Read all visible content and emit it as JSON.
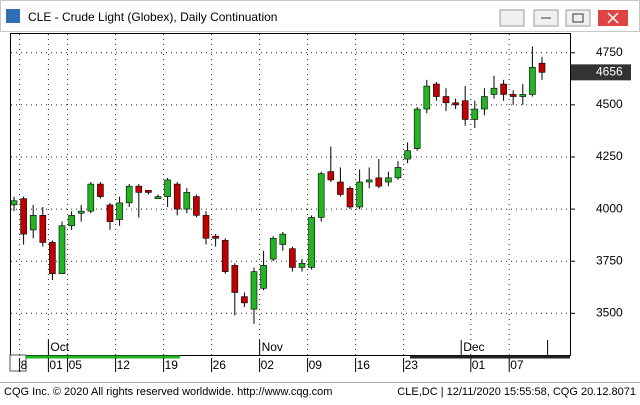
{
  "window_title": "CLE - Crude Light (Globex), Daily Continuation",
  "footer": {
    "left": "CQG Inc. © 2020 All rights reserved worldwide. http://www.cqg.com",
    "right": "CLE,DC | 12/11/2020 15:55:58, CQG 20.12.8071"
  },
  "chart_data": {
    "type": "candlestick",
    "categories": [
      null,
      "8",
      null,
      null,
      "01",
      null,
      "05",
      null,
      null,
      null,
      null,
      "12",
      null,
      null,
      null,
      null,
      "19",
      null,
      null,
      null,
      null,
      "26",
      null,
      null,
      null,
      null,
      "02",
      null,
      null,
      null,
      null,
      "09",
      null,
      null,
      null,
      null,
      "16",
      null,
      null,
      null,
      null,
      "23",
      null,
      null,
      null,
      null,
      null,
      null,
      "01",
      null,
      null,
      null,
      "07",
      null,
      null,
      null,
      null
    ],
    "months": [
      null,
      null,
      null,
      null,
      "Oct",
      null,
      null,
      null,
      null,
      null,
      null,
      null,
      null,
      null,
      null,
      null,
      null,
      null,
      null,
      null,
      null,
      null,
      null,
      null,
      null,
      null,
      "Nov",
      null,
      null,
      null,
      null,
      null,
      null,
      null,
      null,
      null,
      null,
      null,
      null,
      null,
      null,
      null,
      null,
      null,
      null,
      null,
      null,
      "Dec",
      null,
      null,
      null,
      null,
      null,
      null,
      null,
      null
    ],
    "open": [
      4020,
      4050,
      3900,
      3970,
      3840,
      3690,
      3920,
      3980,
      3990,
      4120,
      4020,
      3950,
      4030,
      4110,
      4090,
      4050,
      4060,
      4120,
      4000,
      4060,
      3970,
      3870,
      3850,
      3730,
      3580,
      3520,
      3620,
      3760,
      3830,
      3810,
      3720,
      3720,
      3960,
      4180,
      4130,
      4100,
      4010,
      4130,
      4150,
      4130,
      4150,
      4240,
      4290,
      4480,
      4600,
      4540,
      4510,
      4520,
      4430,
      4480,
      4550,
      4600,
      4550,
      4540,
      4550,
      4700
    ],
    "high": [
      4060,
      4060,
      4020,
      4010,
      3850,
      3940,
      3990,
      4020,
      4130,
      4130,
      4030,
      4060,
      4120,
      4120,
      4090,
      4070,
      4150,
      4130,
      4100,
      4070,
      3990,
      3880,
      3860,
      3740,
      3600,
      3720,
      3800,
      3870,
      3890,
      3820,
      3760,
      3970,
      4180,
      4300,
      4200,
      4110,
      4190,
      4200,
      4240,
      4180,
      4230,
      4320,
      4490,
      4620,
      4610,
      4580,
      4530,
      4590,
      4520,
      4580,
      4640,
      4620,
      4570,
      4600,
      4780,
      4730
    ],
    "low": [
      3990,
      3830,
      3860,
      3820,
      3660,
      3690,
      3900,
      3940,
      3980,
      4050,
      3900,
      3920,
      4010,
      3960,
      4070,
      4050,
      4010,
      3970,
      3980,
      3960,
      3830,
      3820,
      3690,
      3490,
      3530,
      3450,
      3610,
      3750,
      3800,
      3700,
      3700,
      3710,
      3940,
      4130,
      4060,
      4000,
      4000,
      4100,
      4100,
      4110,
      4140,
      4220,
      4280,
      4460,
      4520,
      4470,
      4480,
      4400,
      4390,
      4450,
      4530,
      4520,
      4500,
      4500,
      4540,
      4620
    ],
    "close": [
      4040,
      3880,
      3970,
      3840,
      3690,
      3920,
      3970,
      3990,
      4120,
      4060,
      3940,
      4030,
      4110,
      4080,
      4080,
      4060,
      4140,
      4000,
      4080,
      3970,
      3860,
      3860,
      3700,
      3600,
      3550,
      3700,
      3730,
      3860,
      3880,
      3720,
      3740,
      3960,
      4170,
      4140,
      4070,
      4010,
      4130,
      4140,
      4110,
      4150,
      4200,
      4280,
      4480,
      4590,
      4540,
      4510,
      4500,
      4430,
      4480,
      4540,
      4580,
      4550,
      4540,
      4550,
      4680,
      4656
    ],
    "up_color": "#22b422",
    "down_color": "#c00000",
    "last_price": 4656,
    "ylim": [
      3300,
      4840
    ],
    "yticks": [
      3500,
      3750,
      4000,
      4250,
      4500,
      4750
    ],
    "grid": true
  }
}
